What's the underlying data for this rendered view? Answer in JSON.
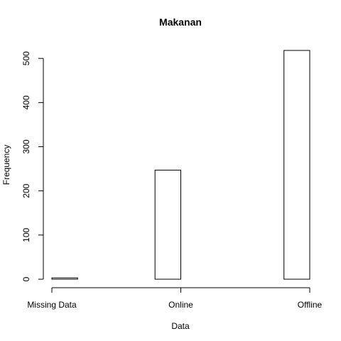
{
  "chart_data": {
    "type": "bar",
    "title": "Makanan",
    "xlabel": "Data",
    "ylabel": "Frequency",
    "categories": [
      "Missing Data",
      "Online",
      "Offline"
    ],
    "x_ticks": [
      "Missing Data",
      "Online",
      "Offline"
    ],
    "bars": [
      {
        "category": "Missing Data",
        "value": 3
      },
      {
        "category": "Online",
        "value": 247
      },
      {
        "category": "Offline",
        "value": 518
      }
    ],
    "y_ticks": [
      0,
      100,
      200,
      300,
      400,
      500
    ],
    "ylim": [
      0,
      518
    ],
    "grid": false,
    "legend": "none",
    "colors": {
      "bar_fill": "#ffffff",
      "bar_stroke": "#000000",
      "axis": "#000000"
    }
  }
}
